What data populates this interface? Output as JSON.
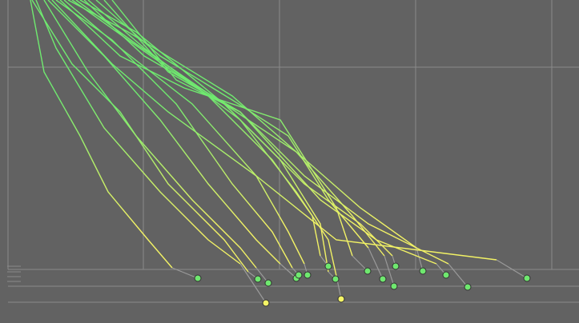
{
  "chart_data": {
    "type": "line",
    "xlim": [
      0,
      723
    ],
    "ylim": [
      404,
      0
    ],
    "xticks": [
      10,
      179,
      349,
      519,
      689
    ],
    "yticks": [
      84,
      337,
      358,
      378
    ],
    "grid": true,
    "background": "#626262",
    "grid_color": "#8a8a8a",
    "tail_color": "#9a9a9a",
    "gradient": [
      "#6fea6f",
      "#f2f265"
    ],
    "series": [
      {
        "color": "#6fe86f",
        "x": [
          38,
          55,
          100,
          135,
          185,
          215,
          247
        ],
        "values": [
          0,
          90,
          170,
          240,
          300,
          335,
          348
        ]
      },
      {
        "color": "#f4f466",
        "x": [
          45,
          70,
          130,
          200,
          260,
          300,
          332
        ],
        "values": [
          0,
          60,
          160,
          240,
          300,
          330,
          379
        ]
      },
      {
        "color": "#6fe86f",
        "x": [
          40,
          90,
          150,
          210,
          280,
          310,
          322
        ],
        "values": [
          0,
          80,
          140,
          230,
          300,
          340,
          349
        ]
      },
      {
        "color": "#6fe86f",
        "x": [
          55,
          110,
          170,
          240,
          300,
          320,
          335
        ],
        "values": [
          0,
          90,
          170,
          250,
          310,
          335,
          354
        ]
      },
      {
        "color": "#6fe86f",
        "x": [
          60,
          130,
          200,
          260,
          320,
          350,
          370
        ],
        "values": [
          0,
          70,
          150,
          230,
          300,
          330,
          348
        ]
      },
      {
        "color": "#6fe86f",
        "x": [
          70,
          140,
          220,
          290,
          340,
          365,
          373
        ],
        "values": [
          0,
          50,
          130,
          230,
          290,
          335,
          344
        ]
      },
      {
        "color": "#6fe86f",
        "x": [
          80,
          150,
          240,
          320,
          360,
          380,
          384
        ],
        "values": [
          0,
          60,
          130,
          220,
          290,
          330,
          344
        ]
      },
      {
        "color": "#6fe86f",
        "x": [
          90,
          160,
          260,
          340,
          390,
          400,
          410
        ],
        "values": [
          0,
          50,
          120,
          200,
          270,
          320,
          333
        ]
      },
      {
        "color": "#6fe86f",
        "x": [
          100,
          170,
          280,
          350,
          400,
          410,
          419
        ],
        "values": [
          0,
          40,
          130,
          200,
          280,
          340,
          349
        ]
      },
      {
        "color": "#f4f466",
        "x": [
          110,
          180,
          300,
          370,
          410,
          420,
          426
        ],
        "values": [
          0,
          60,
          150,
          240,
          300,
          345,
          374
        ]
      },
      {
        "color": "#6fe86f",
        "x": [
          75,
          150,
          230,
          350,
          420,
          440,
          459
        ],
        "values": [
          0,
          70,
          110,
          150,
          260,
          320,
          339
        ]
      },
      {
        "color": "#6fe86f",
        "x": [
          120,
          200,
          290,
          360,
          410,
          460,
          478
        ],
        "values": [
          0,
          70,
          125,
          170,
          250,
          310,
          349
        ]
      },
      {
        "color": "#6fe86f",
        "x": [
          95,
          170,
          250,
          370,
          440,
          480,
          492
        ],
        "values": [
          0,
          55,
          110,
          190,
          270,
          320,
          358
        ]
      },
      {
        "color": "#6fe86f",
        "x": [
          130,
          210,
          280,
          380,
          450,
          490,
          494
        ],
        "values": [
          0,
          90,
          130,
          230,
          280,
          320,
          333
        ]
      },
      {
        "color": "#6fe86f",
        "x": [
          85,
          160,
          290,
          370,
          450,
          520,
          528
        ],
        "values": [
          0,
          40,
          120,
          190,
          260,
          310,
          339
        ]
      },
      {
        "color": "#6fe86f",
        "x": [
          140,
          220,
          300,
          400,
          470,
          545,
          557
        ],
        "values": [
          0,
          100,
          140,
          250,
          300,
          330,
          344
        ]
      },
      {
        "color": "#6fe86f",
        "x": [
          105,
          180,
          300,
          380,
          460,
          560,
          584
        ],
        "values": [
          0,
          70,
          140,
          220,
          280,
          330,
          359
        ]
      },
      {
        "color": "#6fe86f",
        "x": [
          65,
          140,
          210,
          320,
          420,
          620,
          658
        ],
        "values": [
          0,
          80,
          140,
          220,
          300,
          325,
          348
        ]
      }
    ]
  }
}
